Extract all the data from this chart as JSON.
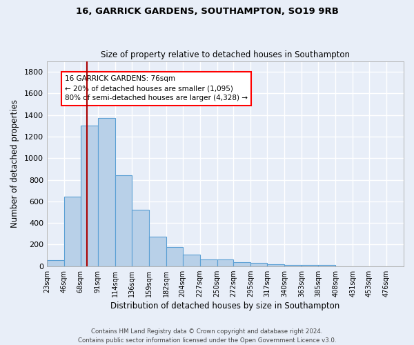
{
  "title1": "16, GARRICK GARDENS, SOUTHAMPTON, SO19 9RB",
  "title2": "Size of property relative to detached houses in Southampton",
  "xlabel": "Distribution of detached houses by size in Southampton",
  "ylabel": "Number of detached properties",
  "footnote1": "Contains HM Land Registry data © Crown copyright and database right 2024.",
  "footnote2": "Contains public sector information licensed under the Open Government Licence v3.0.",
  "bin_labels": [
    "23sqm",
    "46sqm",
    "68sqm",
    "91sqm",
    "114sqm",
    "136sqm",
    "159sqm",
    "182sqm",
    "204sqm",
    "227sqm",
    "250sqm",
    "272sqm",
    "295sqm",
    "317sqm",
    "340sqm",
    "363sqm",
    "385sqm",
    "408sqm",
    "431sqm",
    "453sqm",
    "476sqm"
  ],
  "bar_values": [
    55,
    645,
    1300,
    1370,
    845,
    525,
    275,
    175,
    105,
    65,
    60,
    35,
    30,
    18,
    10,
    10,
    12,
    0,
    0,
    0,
    0
  ],
  "bar_color": "#b8d0e8",
  "bar_edge_color": "#5a9fd4",
  "background_color": "#e8eef8",
  "grid_color": "#ffffff",
  "vline_x_idx": 2,
  "vline_color": "#aa0000",
  "annotation_text": "16 GARRICK GARDENS: 76sqm\n← 20% of detached houses are smaller (1,095)\n80% of semi-detached houses are larger (4,328) →",
  "ylim": [
    0,
    1900
  ],
  "yticks": [
    0,
    200,
    400,
    600,
    800,
    1000,
    1200,
    1400,
    1600,
    1800
  ],
  "bin_edges": [
    23,
    46,
    68,
    91,
    114,
    136,
    159,
    182,
    204,
    227,
    250,
    272,
    295,
    317,
    340,
    363,
    385,
    408,
    431,
    453,
    476,
    499
  ]
}
